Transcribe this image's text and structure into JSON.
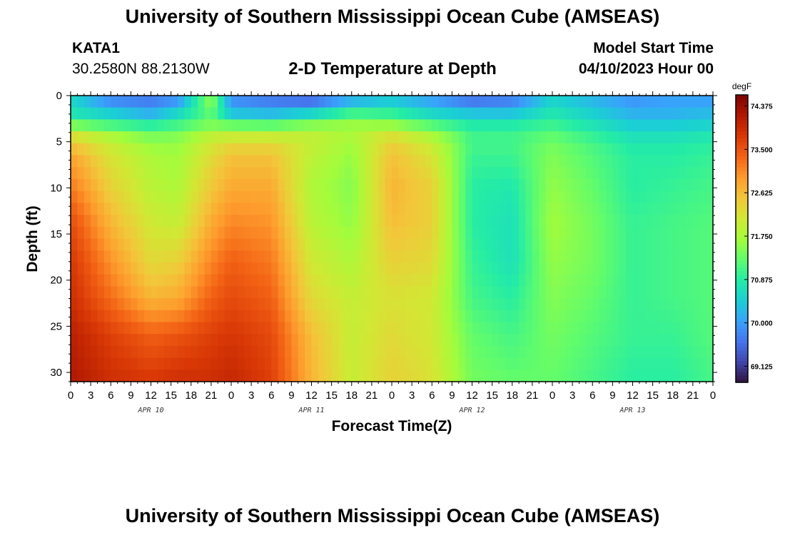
{
  "header": {
    "title": "University of Southern Mississippi Ocean Cube (AMSEAS)",
    "station": "KATA1",
    "coords": "30.2580N  88.2130W",
    "subtitle": "2-D Temperature at Depth",
    "model_start_label": "Model Start Time",
    "model_start_value": "04/10/2023 Hour 00"
  },
  "footer": {
    "title": "University of Southern Mississippi Ocean Cube (AMSEAS)"
  },
  "chart_data": {
    "type": "heatmap",
    "title": "2-D Temperature at Depth",
    "xlabel": "Forecast Time(Z)",
    "ylabel": "Depth (ft)",
    "x_hours": [
      0,
      6,
      12,
      16,
      21,
      24,
      30,
      36,
      42,
      48,
      54,
      60,
      66,
      72,
      78,
      84,
      90,
      96
    ],
    "x_tick_labels": [
      "0",
      "3",
      "6",
      "9",
      "12",
      "15",
      "18",
      "21",
      "0",
      "3",
      "6",
      "9",
      "12",
      "15",
      "18",
      "21",
      "0",
      "3",
      "6",
      "9",
      "12",
      "15",
      "18",
      "21",
      "0",
      "3",
      "6",
      "9",
      "12",
      "15",
      "18",
      "21",
      "0"
    ],
    "day_labels": [
      "APR 10",
      "APR 11",
      "APR 12",
      "APR 13"
    ],
    "xlim": [
      0,
      96
    ],
    "y_depth_ft": [
      0,
      1,
      2,
      3,
      4,
      5,
      7,
      10,
      14,
      18,
      22,
      26,
      31
    ],
    "y_ticks": [
      0,
      5,
      10,
      15,
      20,
      25,
      30
    ],
    "ylim": [
      0,
      31
    ],
    "y_reversed": true,
    "values_degF": [
      [
        70.8,
        69.7,
        69.6,
        69.6,
        71.7,
        69.8,
        69.6,
        69.5,
        69.8,
        70.2,
        69.9,
        69.5,
        69.6,
        70.5,
        70.2,
        69.9,
        70.0,
        70.0
      ],
      [
        70.5,
        70.0,
        69.8,
        70.2,
        71.5,
        70.0,
        69.8,
        69.7,
        70.5,
        70.6,
        70.2,
        69.8,
        69.9,
        70.6,
        70.3,
        70.0,
        70.1,
        70.1
      ],
      [
        70.8,
        70.5,
        70.2,
        70.6,
        71.3,
        70.4,
        70.3,
        70.6,
        71.1,
        71.0,
        70.6,
        70.4,
        70.4,
        70.8,
        70.5,
        70.2,
        70.2,
        70.3
      ],
      [
        71.3,
        71.0,
        70.8,
        71.0,
        71.4,
        71.2,
        71.1,
        71.4,
        71.6,
        71.5,
        71.1,
        70.8,
        70.8,
        71.0,
        70.7,
        70.4,
        70.4,
        70.5
      ],
      [
        72.0,
        71.6,
        71.3,
        71.4,
        71.8,
        71.8,
        71.8,
        71.9,
        71.8,
        72.1,
        71.6,
        71.0,
        71.0,
        71.2,
        70.9,
        70.6,
        70.6,
        70.7
      ],
      [
        72.5,
        72.0,
        71.6,
        71.6,
        72.1,
        72.3,
        72.3,
        72.0,
        71.7,
        72.4,
        72.0,
        71.1,
        71.1,
        71.4,
        71.1,
        70.8,
        70.8,
        70.9
      ],
      [
        72.9,
        72.2,
        71.8,
        71.7,
        72.3,
        72.6,
        72.6,
        71.9,
        71.6,
        72.6,
        72.2,
        71.0,
        71.0,
        71.5,
        71.2,
        70.9,
        70.9,
        71.0
      ],
      [
        73.2,
        72.4,
        71.9,
        71.8,
        72.5,
        72.8,
        72.8,
        71.8,
        71.5,
        72.7,
        72.4,
        70.9,
        70.8,
        71.6,
        71.3,
        70.9,
        71.0,
        71.1
      ],
      [
        73.6,
        72.7,
        72.1,
        72.0,
        72.8,
        73.1,
        73.0,
        71.9,
        71.6,
        72.6,
        72.4,
        70.9,
        70.7,
        71.7,
        71.4,
        71.0,
        71.1,
        71.2
      ],
      [
        73.8,
        73.0,
        72.3,
        72.4,
        73.1,
        73.4,
        73.2,
        72.1,
        71.8,
        72.4,
        72.3,
        71.0,
        70.7,
        71.6,
        71.4,
        71.0,
        71.1,
        71.2
      ],
      [
        73.9,
        73.3,
        72.7,
        72.8,
        73.4,
        73.6,
        73.4,
        72.3,
        72.0,
        72.2,
        72.1,
        71.1,
        70.9,
        71.5,
        71.3,
        71.0,
        71.1,
        71.2
      ],
      [
        74.1,
        73.7,
        73.4,
        73.5,
        73.7,
        73.8,
        73.6,
        72.6,
        72.0,
        72.3,
        72.1,
        71.3,
        71.1,
        71.4,
        71.2,
        71.0,
        71.0,
        71.2
      ],
      [
        74.2,
        73.9,
        73.8,
        73.9,
        73.9,
        74.0,
        73.7,
        72.7,
        72.0,
        72.4,
        72.2,
        71.4,
        71.3,
        71.3,
        71.1,
        70.9,
        70.9,
        71.1
      ]
    ],
    "colorbar": {
      "unit": "degF",
      "ticks": [
        74.375,
        73.5,
        72.625,
        71.75,
        70.875,
        70.0,
        69.125
      ],
      "tick_labels": [
        "74.375",
        "73.500",
        "72.625",
        "71.750",
        "70.875",
        "70.000",
        "69.125"
      ],
      "min": 68.8,
      "max": 74.6,
      "colors": [
        "#30123b",
        "#4145ab",
        "#4675ed",
        "#39a2fc",
        "#1bcfd4",
        "#24eca6",
        "#61fc6c",
        "#a4fc3b",
        "#d1e834",
        "#f3c63a",
        "#fe9b2d",
        "#f36315",
        "#d93806",
        "#b11901",
        "#7a0402"
      ]
    }
  }
}
